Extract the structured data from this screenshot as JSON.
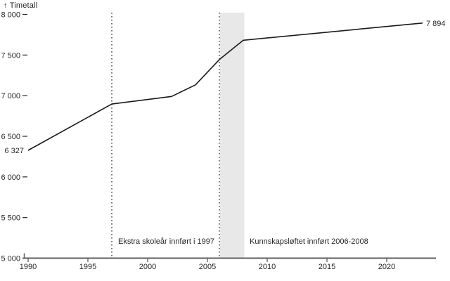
{
  "header": {
    "arrow": "↑",
    "ylabel": "Timetall"
  },
  "colors": {
    "line": "#1a1a1a",
    "axis": "#5f5f63",
    "band": "#e8e8e8",
    "text": "#26262a",
    "dotted_line": "#1a1a1a"
  },
  "chart_data": {
    "type": "line",
    "title": "Timetall",
    "xlabel": "",
    "ylabel": "Timetall",
    "xlim": [
      1990,
      2024
    ],
    "ylim": [
      5000,
      8000
    ],
    "grid": false,
    "legend": "none",
    "x_ticks": [
      1990,
      1995,
      2000,
      2005,
      2010,
      2015,
      2020
    ],
    "y_ticks": [
      5000,
      5500,
      6000,
      6500,
      7000,
      7500,
      8000
    ],
    "y_tick_labels": [
      "5 000",
      "5 500",
      "6 000",
      "6 500",
      "7 000",
      "7 500",
      "8 000"
    ],
    "series": [
      {
        "name": "Timetall",
        "points": [
          [
            1990,
            6327
          ],
          [
            1997,
            6897
          ],
          [
            2002,
            6990
          ],
          [
            2004,
            7133
          ],
          [
            2006,
            7444
          ],
          [
            2008,
            7682
          ],
          [
            2023,
            7894
          ]
        ]
      }
    ],
    "vlines": [
      {
        "x": 1997,
        "style": "dotted"
      },
      {
        "x": 2006,
        "style": "dotted"
      }
    ],
    "bands": [
      {
        "x0": 2006,
        "x1": 2008,
        "color": "#e8e8e8"
      }
    ],
    "annotations": [
      {
        "text": "Ekstra skoleår innført i 1997"
      },
      {
        "text": "Kunnskapsløftet innført 2006-2008"
      }
    ],
    "point_labels": [
      {
        "x": 1990,
        "y": 6327,
        "text": "6 327",
        "anchor": "end"
      },
      {
        "x": 2023,
        "y": 7894,
        "text": "7 894",
        "anchor": "start"
      }
    ]
  }
}
